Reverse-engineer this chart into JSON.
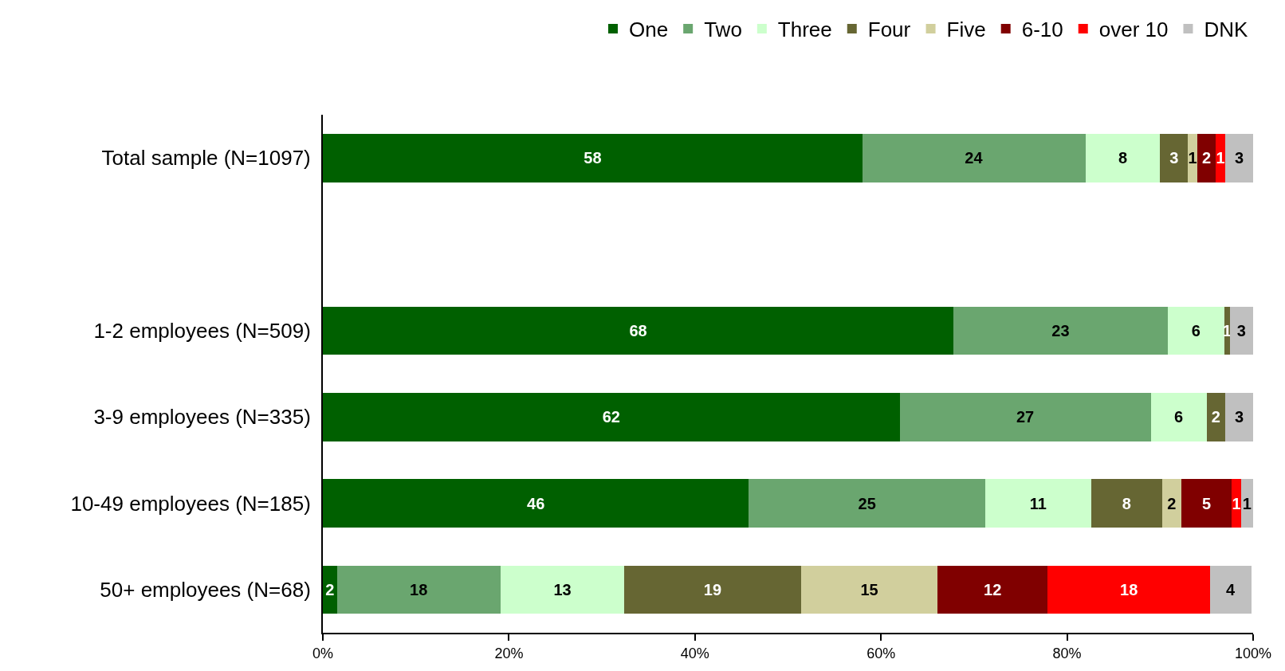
{
  "chart_data": {
    "type": "bar",
    "orientation": "horizontal",
    "stacked": true,
    "legend": "top",
    "grid": false,
    "categories": [
      "Total sample (N=1097)",
      null,
      "1-2 employees (N=509)",
      "3-9 employees (N=335)",
      "10-49 employees (N=185)",
      "50+ employees (N=68)"
    ],
    "xlim": [
      0,
      100
    ],
    "xticks": [
      {
        "value": 0,
        "label": "0%"
      },
      {
        "value": 20,
        "label": "20%"
      },
      {
        "value": 40,
        "label": "40%"
      },
      {
        "value": 60,
        "label": "60%"
      },
      {
        "value": 80,
        "label": "80%"
      },
      {
        "value": 100,
        "label": "100%"
      }
    ],
    "series": [
      {
        "name": "One",
        "color": "#006000",
        "values": [
          58,
          null,
          67.8,
          62,
          45.8,
          1.5
        ],
        "value_labels": [
          "58",
          null,
          "68",
          "62",
          "46",
          "2"
        ]
      },
      {
        "name": "Two",
        "color": "#6aa66f",
        "values": [
          24,
          null,
          23.0,
          27,
          25.4,
          17.6
        ],
        "value_labels": [
          "24",
          null,
          "23",
          "27",
          "25",
          "18"
        ]
      },
      {
        "name": "Three",
        "color": "#ccffcc",
        "values": [
          8,
          null,
          6.1,
          6,
          11.4,
          13.3
        ],
        "value_labels": [
          "8",
          null,
          "6",
          "6",
          "11",
          "13"
        ]
      },
      {
        "name": "Four",
        "color": "#666633",
        "values": [
          3,
          null,
          0.6,
          2,
          7.6,
          19.0
        ],
        "value_labels": [
          "3",
          null,
          "1",
          "2",
          "8",
          "19"
        ]
      },
      {
        "name": "Five",
        "color": "#d1cf9d",
        "values": [
          1,
          null,
          null,
          null,
          2.1,
          14.7
        ],
        "value_labels": [
          "1",
          null,
          null,
          null,
          "2",
          "15"
        ]
      },
      {
        "name": "6-10",
        "color": "#800000",
        "values": [
          2,
          null,
          null,
          null,
          5.4,
          11.8
        ],
        "value_labels": [
          "2",
          null,
          null,
          null,
          "5",
          "12"
        ]
      },
      {
        "name": "over 10",
        "color": "#ff0000",
        "values": [
          1,
          null,
          null,
          null,
          1.0,
          17.5
        ],
        "value_labels": [
          "1",
          null,
          null,
          null,
          "1",
          "18"
        ]
      },
      {
        "name": "DNK",
        "color": "#c0c0c0",
        "values": [
          3,
          null,
          2.5,
          3,
          1.3,
          4.4
        ],
        "value_labels": [
          "3",
          null,
          "3",
          "3",
          "1",
          "4"
        ]
      }
    ]
  }
}
